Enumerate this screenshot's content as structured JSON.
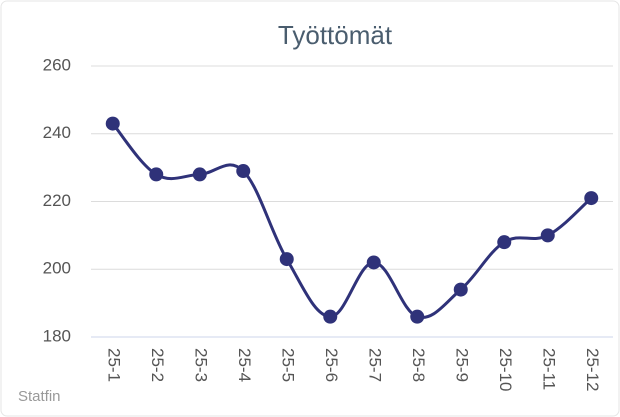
{
  "chart_data": {
    "type": "line",
    "title": "Työttömät",
    "credit": "Statfin",
    "categories": [
      "25-1",
      "25-2",
      "25-3",
      "25-4",
      "25-5",
      "25-6",
      "25-7",
      "25-8",
      "25-9",
      "25-10",
      "25-11",
      "25-12"
    ],
    "values": [
      243,
      228,
      228,
      229,
      203,
      186,
      202,
      186,
      194,
      208,
      210,
      221
    ],
    "color": "#2f3279",
    "ylim": [
      180,
      260
    ],
    "yticks": [
      180,
      200,
      220,
      240,
      260
    ],
    "grid": true
  }
}
